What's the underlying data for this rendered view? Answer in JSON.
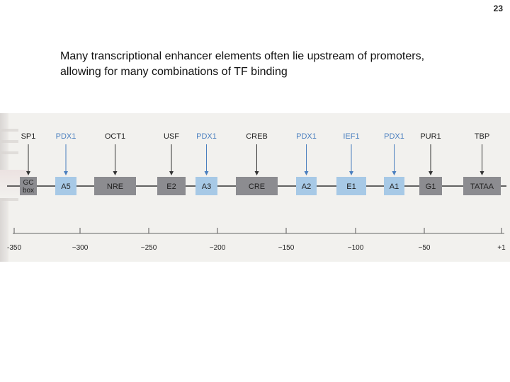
{
  "slide_number": "23",
  "caption": {
    "line1": "Many transcriptional enhancer elements often lie upstream of promoters,",
    "line2": "allowing for many combinations of TF binding"
  },
  "colors": {
    "dark_box": "#8c8c90",
    "light_box": "#a7c9e6",
    "dark_arrow": "#333333",
    "blue_arrow": "#4a7fbf",
    "dark_label": "#222222",
    "blue_label": "#4a7fbf"
  },
  "factors": [
    {
      "tf": "SP1",
      "element": "GC box",
      "color": "dark"
    },
    {
      "tf": "PDX1",
      "element": "A5",
      "color": "blue"
    },
    {
      "tf": "OCT1",
      "element": "NRE",
      "color": "dark"
    },
    {
      "tf": "USF",
      "element": "E2",
      "color": "dark"
    },
    {
      "tf": "PDX1",
      "element": "A3",
      "color": "blue"
    },
    {
      "tf": "CREB",
      "element": "CRE",
      "color": "dark"
    },
    {
      "tf": "PDX1",
      "element": "A2",
      "color": "blue"
    },
    {
      "tf": "IEF1",
      "element": "E1",
      "color": "blue"
    },
    {
      "tf": "PDX1",
      "element": "A1",
      "color": "blue"
    },
    {
      "tf": "PUR1",
      "element": "G1",
      "color": "dark"
    },
    {
      "tf": "TBP",
      "element": "TATAA",
      "color": "dark"
    }
  ],
  "axis": {
    "ticks": [
      "-350",
      "−300",
      "−250",
      "−200",
      "−150",
      "−100",
      "−50",
      "+1"
    ]
  }
}
